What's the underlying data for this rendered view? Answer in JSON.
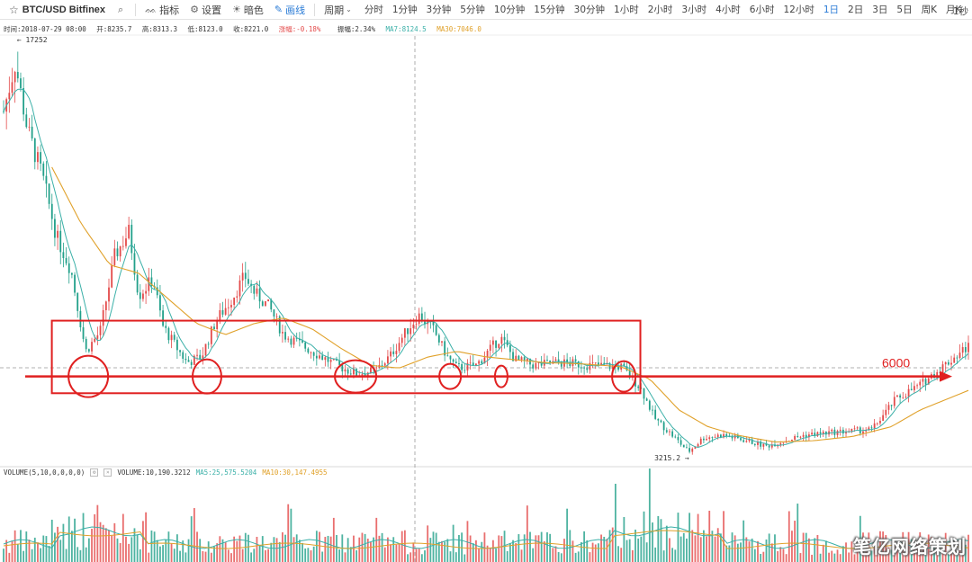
{
  "toolbar": {
    "symbol": "BTC/USD Bitfinex",
    "indicators_label": "指标",
    "settings_label": "设置",
    "theme_label": "暗色",
    "draw_label": "画线",
    "period_label": "周期",
    "periods": [
      "分时",
      "1分钟",
      "3分钟",
      "5分钟",
      "10分钟",
      "15分钟",
      "30分钟",
      "1小时",
      "2小时",
      "3小时",
      "4小时",
      "6小时",
      "12小时",
      "1日",
      "2日",
      "3日",
      "5日",
      "周K",
      "月K"
    ],
    "active_period": "1日",
    "right_label": "1秒"
  },
  "info": {
    "time": "时间:2018-07-29 08:00",
    "open": "开:8235.7",
    "high": "高:8313.3",
    "low": "低:8123.0",
    "close": "收:8221.0",
    "change": "涨幅:-0.18%",
    "amplitude": "振幅:2.34%",
    "ma7": "MA7:8124.5",
    "ma30": "MA30:7046.0"
  },
  "volume_info": {
    "label": "VOLUME(5,10,0,0,0,0)",
    "volume": "VOLUME:10,190.3212",
    "ma5": "MA5:25,575.5204",
    "ma10": "MA10:30,147.4955"
  },
  "watermark": "笔亿网络策划",
  "colors": {
    "up": "#e34a4a",
    "down": "#22a08a",
    "ma7": "#3bb0a8",
    "ma30": "#e0a12a",
    "annotation": "#e02020",
    "active": "#2a7bd6"
  },
  "chart_data": {
    "type": "candlestick",
    "title": "BTC/USD Bitfinex",
    "timeframe": "1日",
    "high_label": "17252",
    "low_label": "3215.2",
    "ylim": [
      2800,
      18200
    ],
    "horizontal_level": 6000,
    "annotation_label": "6000",
    "highlight_box": {
      "price_top": 8000,
      "price_bottom": 5400,
      "x_start": 0.05,
      "x_end": 0.66
    },
    "support_touches": 7,
    "price_path": [
      [
        0,
        15500
      ],
      [
        0.012,
        17252
      ],
      [
        0.025,
        14800
      ],
      [
        0.04,
        13200
      ],
      [
        0.055,
        11000
      ],
      [
        0.07,
        9800
      ],
      [
        0.085,
        6900
      ],
      [
        0.1,
        7600
      ],
      [
        0.115,
        10300
      ],
      [
        0.13,
        11200
      ],
      [
        0.14,
        8900
      ],
      [
        0.155,
        9500
      ],
      [
        0.165,
        7800
      ],
      [
        0.18,
        7000
      ],
      [
        0.19,
        6500
      ],
      [
        0.205,
        6700
      ],
      [
        0.22,
        8000
      ],
      [
        0.235,
        8700
      ],
      [
        0.25,
        9600
      ],
      [
        0.26,
        9000
      ],
      [
        0.275,
        8500
      ],
      [
        0.29,
        7500
      ],
      [
        0.31,
        7100
      ],
      [
        0.33,
        6700
      ],
      [
        0.345,
        6400
      ],
      [
        0.365,
        6100
      ],
      [
        0.385,
        6200
      ],
      [
        0.4,
        6700
      ],
      [
        0.415,
        7500
      ],
      [
        0.43,
        8200
      ],
      [
        0.445,
        7700
      ],
      [
        0.46,
        6700
      ],
      [
        0.47,
        6300
      ],
      [
        0.49,
        6400
      ],
      [
        0.505,
        7000
      ],
      [
        0.515,
        7400
      ],
      [
        0.53,
        6600
      ],
      [
        0.55,
        6400
      ],
      [
        0.575,
        6500
      ],
      [
        0.61,
        6400
      ],
      [
        0.64,
        6350
      ],
      [
        0.66,
        5600
      ],
      [
        0.675,
        4500
      ],
      [
        0.69,
        4000
      ],
      [
        0.71,
        3300
      ],
      [
        0.725,
        3800
      ],
      [
        0.745,
        3900
      ],
      [
        0.77,
        3700
      ],
      [
        0.79,
        3500
      ],
      [
        0.81,
        3700
      ],
      [
        0.83,
        3900
      ],
      [
        0.86,
        4000
      ],
      [
        0.9,
        4100
      ],
      [
        0.925,
        5200
      ],
      [
        0.95,
        5700
      ],
      [
        0.975,
        6400
      ],
      [
        1.0,
        7100
      ]
    ],
    "ma30_path": [
      [
        0.05,
        13500
      ],
      [
        0.08,
        11500
      ],
      [
        0.11,
        10000
      ],
      [
        0.14,
        9700
      ],
      [
        0.17,
        8800
      ],
      [
        0.2,
        7900
      ],
      [
        0.23,
        7500
      ],
      [
        0.26,
        7900
      ],
      [
        0.29,
        8100
      ],
      [
        0.32,
        7700
      ],
      [
        0.35,
        7000
      ],
      [
        0.38,
        6400
      ],
      [
        0.41,
        6300
      ],
      [
        0.44,
        6700
      ],
      [
        0.47,
        6900
      ],
      [
        0.5,
        6700
      ],
      [
        0.53,
        6600
      ],
      [
        0.56,
        6500
      ],
      [
        0.6,
        6450
      ],
      [
        0.64,
        6350
      ],
      [
        0.67,
        5900
      ],
      [
        0.7,
        4800
      ],
      [
        0.73,
        4200
      ],
      [
        0.76,
        3900
      ],
      [
        0.8,
        3650
      ],
      [
        0.84,
        3700
      ],
      [
        0.88,
        3850
      ],
      [
        0.92,
        4200
      ],
      [
        0.95,
        4800
      ],
      [
        1.0,
        5500
      ]
    ]
  }
}
